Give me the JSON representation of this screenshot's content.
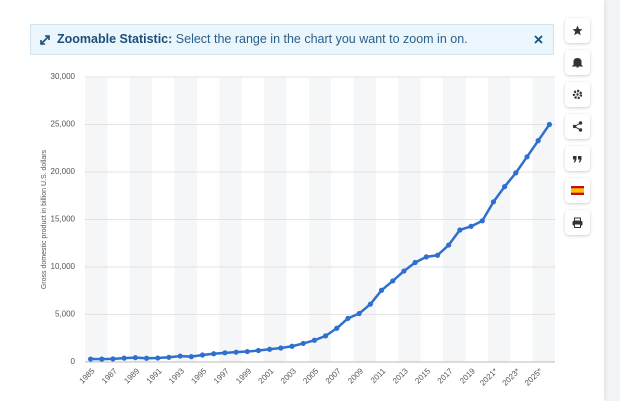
{
  "banner": {
    "title": "Zoomable Statistic:",
    "text": "Select the range in the chart you want to zoom in on."
  },
  "chart_data": {
    "type": "line",
    "y_label": "Gross domestic product in billion U.S. dollars",
    "categories": [
      "1985",
      null,
      "1987",
      null,
      "1989",
      null,
      "1991",
      null,
      "1993",
      null,
      "1995",
      null,
      "1997",
      null,
      "1999",
      null,
      "2001",
      null,
      "2003",
      null,
      "2005",
      null,
      "2007",
      null,
      "2009",
      null,
      "2011",
      null,
      "2013",
      null,
      "2015",
      null,
      "2017",
      null,
      "2019",
      null,
      "2021*",
      null,
      "2023*",
      null,
      "2025*",
      null
    ],
    "values": [
      310,
      300,
      327,
      408,
      457,
      395,
      415,
      495,
      623,
      568,
      737,
      867,
      965,
      1035,
      1099,
      1211,
      1339,
      1471,
      1660,
      1955,
      2286,
      2752,
      3550,
      4594,
      5102,
      6087,
      7552,
      8532,
      9570,
      10476,
      11062,
      11233,
      12310,
      13895,
      14280,
      14860,
      16860,
      18460,
      19910,
      21600,
      23300,
      25000
    ],
    "color": "#2f6fce",
    "ylim": [
      0,
      30000
    ],
    "yticks": [
      0,
      {
        "value": 5000,
        "label": "5,000"
      },
      {
        "value": 10000,
        "label": "10,000"
      },
      {
        "value": 15000,
        "label": "15,000"
      },
      {
        "value": 20000,
        "label": "20,000"
      },
      {
        "value": 25000,
        "label": "25,000"
      },
      {
        "value": 30000,
        "label": "30,000"
      }
    ],
    "grid": true
  }
}
